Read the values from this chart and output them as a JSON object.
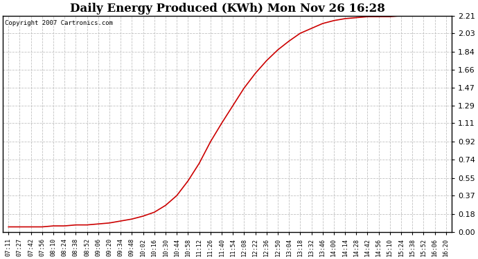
{
  "title": "Daily Energy Produced (KWh) Mon Nov 26 16:28",
  "copyright_text": "Copyright 2007 Cartronics.com",
  "line_color": "#cc0000",
  "background_color": "#ffffff",
  "plot_bg_color": "#ffffff",
  "grid_color": "#bbbbbb",
  "yticks": [
    0.0,
    0.18,
    0.37,
    0.55,
    0.74,
    0.92,
    1.11,
    1.29,
    1.47,
    1.66,
    1.84,
    2.03,
    2.21
  ],
  "ylim": [
    0.0,
    2.21
  ],
  "xtick_labels": [
    "07:11",
    "07:27",
    "07:42",
    "07:56",
    "08:10",
    "08:24",
    "08:38",
    "08:52",
    "09:06",
    "09:20",
    "09:34",
    "09:48",
    "10:02",
    "10:16",
    "10:30",
    "10:44",
    "10:58",
    "11:12",
    "11:26",
    "11:40",
    "11:54",
    "12:08",
    "12:22",
    "12:36",
    "12:50",
    "13:04",
    "13:18",
    "13:32",
    "13:46",
    "14:00",
    "14:14",
    "14:28",
    "14:42",
    "14:56",
    "15:10",
    "15:24",
    "15:38",
    "15:52",
    "16:06",
    "16:20"
  ],
  "y_values": [
    0.05,
    0.05,
    0.05,
    0.05,
    0.06,
    0.06,
    0.07,
    0.07,
    0.08,
    0.09,
    0.11,
    0.13,
    0.16,
    0.2,
    0.27,
    0.37,
    0.52,
    0.7,
    0.92,
    1.11,
    1.29,
    1.47,
    1.62,
    1.75,
    1.86,
    1.95,
    2.03,
    2.08,
    2.13,
    2.16,
    2.18,
    2.19,
    2.2,
    2.2,
    2.2,
    2.21,
    2.21,
    2.21,
    2.21,
    2.21
  ]
}
